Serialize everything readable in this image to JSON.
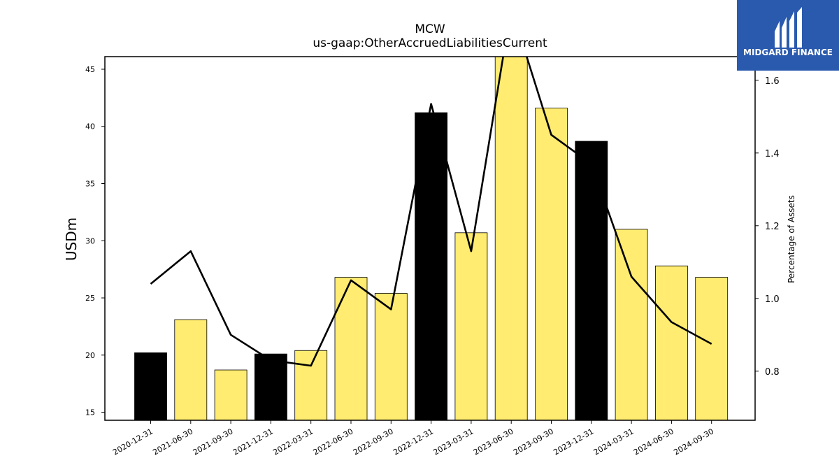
{
  "chart_data": {
    "type": "bar",
    "title": "MCW",
    "subtitle": "us-gaap:OtherAccruedLiabilitiesCurrent",
    "ylabel": "USDm",
    "y2label": "Percentage of Assets",
    "categories": [
      "2020-12-31",
      "2021-06-30",
      "2021-09-30",
      "2021-12-31",
      "2022-03-31",
      "2022-06-30",
      "2022-09-30",
      "2022-12-31",
      "2023-03-31",
      "2023-06-30",
      "2023-09-30",
      "2023-12-31",
      "2024-03-31",
      "2024-06-30",
      "2024-09-30"
    ],
    "series": [
      {
        "type": "bar",
        "values": [
          20.2,
          23.1,
          18.7,
          20.1,
          20.4,
          26.8,
          25.4,
          41.2,
          30.7,
          46.3,
          41.6,
          38.7,
          31.0,
          27.8,
          26.8
        ],
        "colors": [
          "#000000",
          "#ffec70",
          "#ffec70",
          "#000000",
          "#ffec70",
          "#ffec70",
          "#ffec70",
          "#000000",
          "#ffec70",
          "#ffec70",
          "#ffec70",
          "#000000",
          "#ffec70",
          "#ffec70",
          "#ffec70"
        ]
      },
      {
        "type": "line",
        "axis": "right",
        "values": [
          1.04,
          1.13,
          0.9,
          0.83,
          0.815,
          1.05,
          0.97,
          1.535,
          1.13,
          1.8,
          1.45,
          1.37,
          1.06,
          0.935,
          0.875
        ],
        "color": "#000000"
      }
    ],
    "ylim": [
      14.3,
      46.1
    ],
    "yticks": [
      15,
      20,
      25,
      30,
      35,
      40,
      45
    ],
    "y2lim": [
      0.665,
      1.665
    ],
    "y2ticks": [
      0.8,
      1.0,
      1.2,
      1.4,
      1.6
    ],
    "grid": false,
    "legend": "none"
  },
  "logo": {
    "text": "MIDGARD FINANCE"
  }
}
